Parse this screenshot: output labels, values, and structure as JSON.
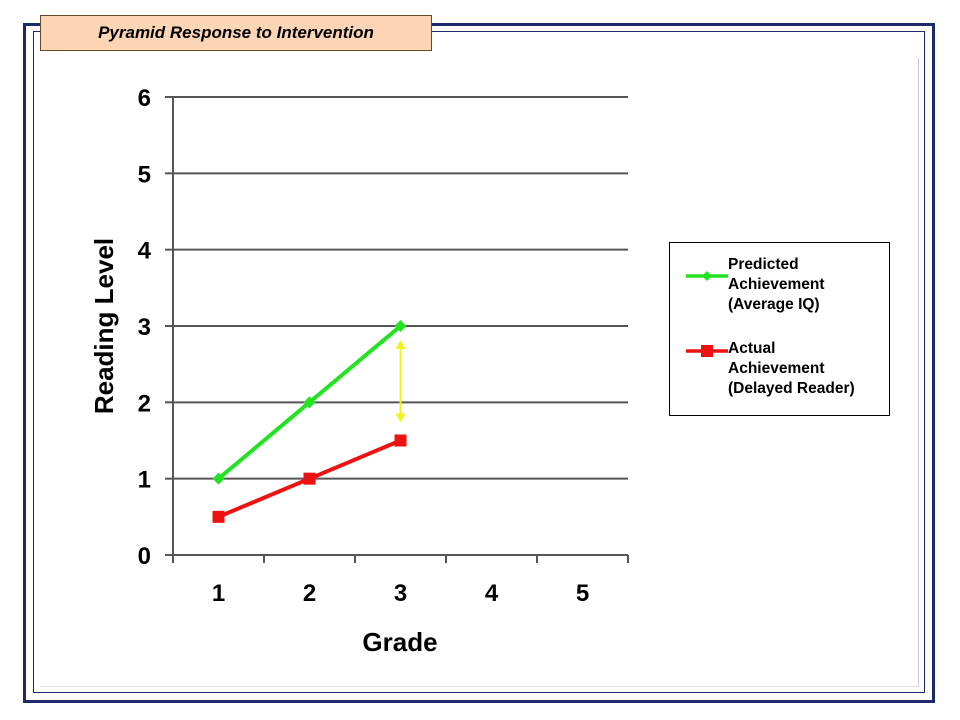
{
  "title_tab": "Pyramid Response to Intervention",
  "chart_data": {
    "type": "line",
    "xlabel": "Grade",
    "ylabel": "Reading Level",
    "x_ticks": [
      "1",
      "2",
      "3",
      "4",
      "5"
    ],
    "y_ticks": [
      "0",
      "1",
      "2",
      "3",
      "4",
      "5",
      "6"
    ],
    "xlim": [
      0.5,
      5.5
    ],
    "ylim": [
      0,
      6
    ],
    "grid": "horizontal",
    "legend_position": "right",
    "series": [
      {
        "name": "Predicted Achievement (Average IQ)",
        "x": [
          1,
          2,
          3
        ],
        "y": [
          1,
          2,
          3
        ],
        "color": "#22e222",
        "marker": "diamond"
      },
      {
        "name": "Actual Achievement (Delayed Reader)",
        "x": [
          1,
          2,
          3
        ],
        "y": [
          0.5,
          1,
          1.5
        ],
        "color": "#ee1111",
        "marker": "square"
      }
    ],
    "annotation": {
      "type": "double-arrow",
      "x": 3,
      "y_from": 1.5,
      "y_to": 3,
      "color": "#f2f21a"
    }
  },
  "legend": [
    {
      "label": "Predicted\nAchievement\n(Average IQ)",
      "color": "#22e222",
      "marker": "diamond"
    },
    {
      "label": "Actual\nAchievement\n(Delayed Reader)",
      "color": "#ee1111",
      "marker": "square"
    }
  ]
}
